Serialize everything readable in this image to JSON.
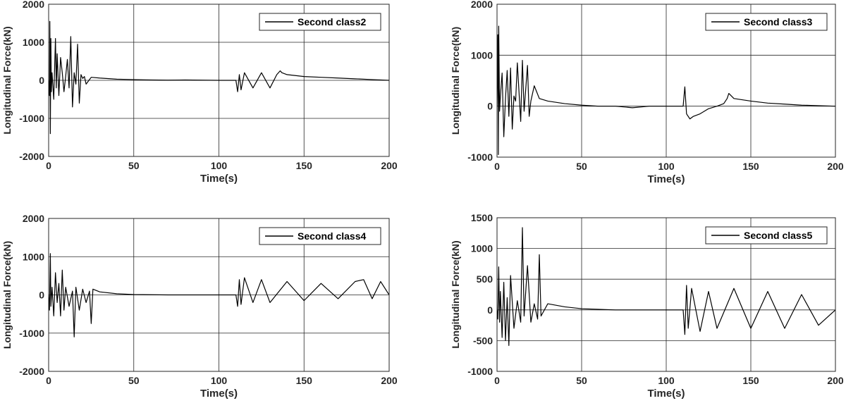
{
  "chart_data": [
    {
      "type": "line",
      "xlabel": "Time(s)",
      "ylabel": "Longitudinal Force(kN)",
      "xlim": [
        0,
        200
      ],
      "ylim": [
        -2000,
        2000
      ],
      "xticks": [
        0,
        50,
        100,
        150,
        200
      ],
      "yticks": [
        -2000,
        -1000,
        0,
        1000,
        2000
      ],
      "grid": true,
      "legend": "top-right",
      "series": [
        {
          "name": "Second class2",
          "color": "#000000",
          "x": [
            0,
            0.5,
            0.7,
            1.0,
            1.3,
            1.6,
            2.0,
            3,
            4,
            4.5,
            5,
            6,
            7,
            8,
            9,
            10,
            11,
            12,
            13,
            14,
            15,
            16,
            17,
            18,
            19,
            20,
            21,
            22,
            25,
            30,
            40,
            50,
            60,
            70,
            80,
            90,
            100,
            110,
            111,
            112,
            113,
            115,
            120,
            125,
            130,
            134,
            136,
            137,
            140,
            150,
            160,
            170,
            180,
            190,
            200
          ],
          "y": [
            0,
            -400,
            1550,
            -1400,
            1100,
            -300,
            200,
            -500,
            1100,
            -200,
            700,
            -400,
            600,
            200,
            -300,
            100,
            550,
            -200,
            1150,
            -700,
            200,
            -100,
            950,
            -600,
            150,
            50,
            100,
            -100,
            80,
            60,
            30,
            20,
            10,
            5,
            10,
            5,
            0,
            0,
            -300,
            150,
            -250,
            200,
            -200,
            200,
            -200,
            150,
            250,
            200,
            150,
            100,
            80,
            60,
            40,
            20,
            0
          ]
        }
      ]
    },
    {
      "type": "line",
      "xlabel": "Time(s)",
      "ylabel": "Longitudinal Force(kN)",
      "xlim": [
        0,
        200
      ],
      "ylim": [
        -1000,
        2000
      ],
      "xticks": [
        0,
        50,
        100,
        150,
        200
      ],
      "yticks": [
        -1000,
        0,
        1000,
        2000
      ],
      "grid": true,
      "legend": "top-right",
      "series": [
        {
          "name": "Second class3",
          "color": "#000000",
          "x": [
            0,
            0.5,
            0.8,
            1.0,
            1.5,
            2.0,
            3,
            4,
            5,
            6,
            7,
            8,
            9,
            10,
            11,
            12,
            14,
            15,
            16,
            18,
            19,
            20,
            22,
            25,
            30,
            40,
            50,
            60,
            70,
            80,
            90,
            100,
            110,
            111,
            112,
            114,
            116,
            120,
            125,
            130,
            134,
            136,
            137,
            140,
            150,
            160,
            170,
            180,
            190,
            200
          ],
          "y": [
            0,
            1400,
            -950,
            1570,
            -100,
            200,
            650,
            -600,
            150,
            700,
            -200,
            750,
            -450,
            200,
            100,
            850,
            -300,
            900,
            -100,
            800,
            -200,
            100,
            400,
            150,
            100,
            50,
            20,
            0,
            0,
            -30,
            0,
            0,
            0,
            380,
            -150,
            -250,
            -200,
            -150,
            -50,
            0,
            50,
            150,
            250,
            150,
            100,
            60,
            40,
            20,
            10,
            0
          ]
        }
      ]
    },
    {
      "type": "line",
      "xlabel": "Time(s)",
      "ylabel": "Longitudinal Force(kN)",
      "xlim": [
        0,
        200
      ],
      "ylim": [
        -2000,
        2000
      ],
      "xticks": [
        0,
        50,
        100,
        150,
        200
      ],
      "yticks": [
        -2000,
        -1000,
        0,
        1000,
        2000
      ],
      "grid": true,
      "legend": "top-right",
      "series": [
        {
          "name": "Second class4",
          "color": "#000000",
          "x": [
            0,
            0.5,
            1.0,
            1.3,
            2,
            3,
            4,
            5,
            6,
            7,
            8,
            9,
            10,
            12,
            14,
            15,
            16,
            18,
            20,
            22,
            24,
            25,
            26,
            30,
            40,
            50,
            60,
            70,
            80,
            90,
            100,
            110,
            111,
            112,
            113,
            115,
            120,
            125,
            130,
            140,
            150,
            160,
            170,
            180,
            185,
            190,
            195,
            200
          ],
          "y": [
            0,
            -400,
            1080,
            -300,
            200,
            -550,
            580,
            -200,
            300,
            -550,
            650,
            -400,
            200,
            -300,
            100,
            -1100,
            200,
            -400,
            150,
            -200,
            100,
            -750,
            150,
            80,
            30,
            10,
            5,
            0,
            0,
            0,
            0,
            0,
            -300,
            400,
            -250,
            450,
            -200,
            400,
            -200,
            350,
            -150,
            300,
            -100,
            350,
            400,
            -100,
            350,
            0
          ]
        }
      ]
    },
    {
      "type": "line",
      "xlabel": "Time(s)",
      "ylabel": "Longitudinal Force(kN)",
      "xlim": [
        0,
        200
      ],
      "ylim": [
        -1000,
        1500
      ],
      "xticks": [
        0,
        50,
        100,
        150,
        200
      ],
      "yticks": [
        -1000,
        -500,
        0,
        500,
        1000,
        1500
      ],
      "grid": true,
      "legend": "top-right",
      "series": [
        {
          "name": "Second class5",
          "color": "#000000",
          "x": [
            0,
            0.5,
            1.0,
            1.5,
            2,
            3,
            4,
            5,
            6,
            7,
            8,
            10,
            12,
            14,
            15,
            16,
            18,
            20,
            22,
            24,
            25,
            26,
            30,
            40,
            50,
            60,
            70,
            80,
            90,
            100,
            110,
            111,
            112,
            113,
            115,
            120,
            125,
            130,
            140,
            150,
            160,
            170,
            180,
            190,
            200
          ],
          "y": [
            0,
            -150,
            700,
            -200,
            300,
            -450,
            450,
            -500,
            200,
            -580,
            560,
            -300,
            150,
            -200,
            1340,
            -100,
            720,
            -200,
            100,
            -150,
            900,
            -100,
            100,
            50,
            20,
            10,
            0,
            0,
            0,
            0,
            0,
            -400,
            400,
            -300,
            350,
            -350,
            300,
            -300,
            350,
            -300,
            300,
            -300,
            250,
            -250,
            0
          ]
        }
      ]
    }
  ]
}
